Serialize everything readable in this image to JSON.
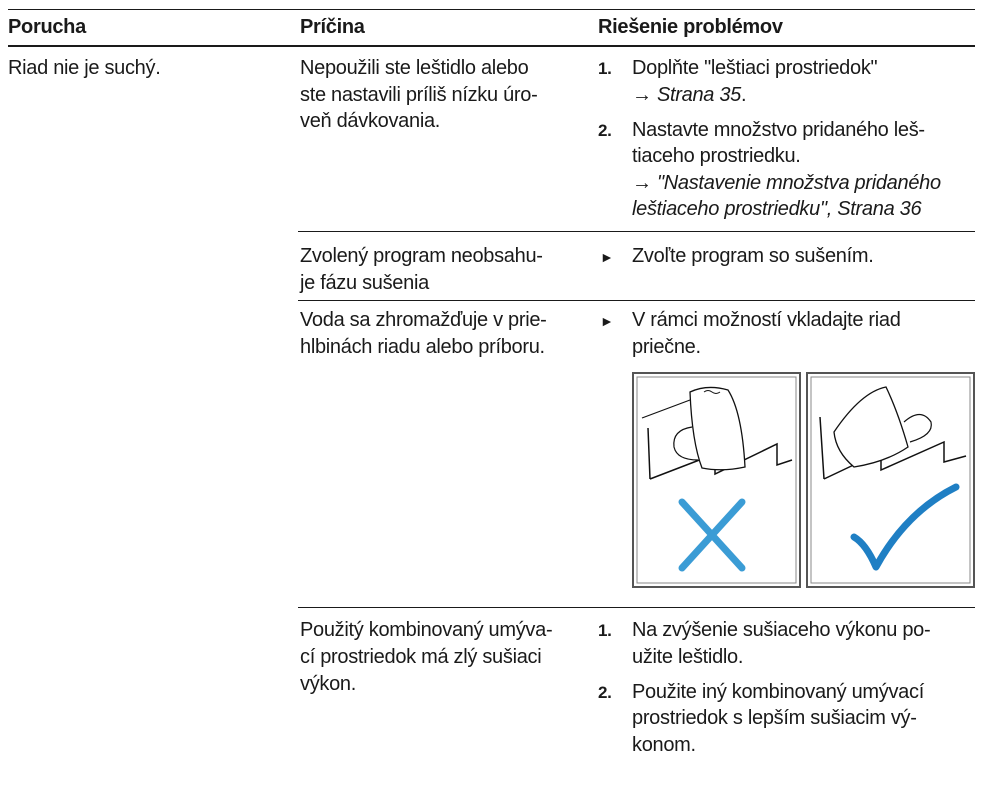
{
  "table": {
    "headers": [
      "Porucha",
      "Príčina",
      "Riešenie problémov"
    ],
    "rows": [
      {
        "fault": "Riad nie je suchý.",
        "cause": [
          "Nepoužili ste leštidlo alebo",
          "ste nastavili príliš nízku úro-",
          "veň dávkovania."
        ],
        "steps": [
          {
            "number": "1.",
            "lines": [
              "Doplňte \"leštiaci prostriedok\""
            ],
            "ref": [
              "→",
              "Strana 35",
              "."
            ]
          },
          {
            "number": "2.",
            "lines": [
              "Nastavte množstvo pridaného leš-",
              "tiaceho prostriedku."
            ],
            "ref": [
              "→",
              "\"Nastavenie množstva pridaného",
              "leštiaceho prostriedku\", Strana 36"
            ]
          }
        ]
      },
      {
        "cause": [
          "Zvolený program neobsahu-",
          "je fázu sušenia"
        ],
        "bullet": "►",
        "lines": [
          "Zvoľte program so sušením."
        ]
      },
      {
        "cause": [
          "Voda sa zhromažďuje v prie-",
          "hlbinách riadu alebo príboru."
        ],
        "bullet": "►",
        "lines": [
          "V rámci možností vkladajte riad",
          "priečne."
        ]
      },
      {
        "cause": [
          "Použitý kombinovaný umýva-",
          "cí prostriedok má zlý sušiaci",
          "výkon."
        ],
        "steps": [
          {
            "number": "1.",
            "lines": [
              "Na zvýšenie sušiaceho výkonu po-",
              "užite leštidlo."
            ]
          },
          {
            "number": "2.",
            "lines": [
              "Použite iný kombinovaný umývací",
              "prostriedok s lepším sušiacim vý-",
              "konom."
            ]
          }
        ]
      }
    ]
  }
}
